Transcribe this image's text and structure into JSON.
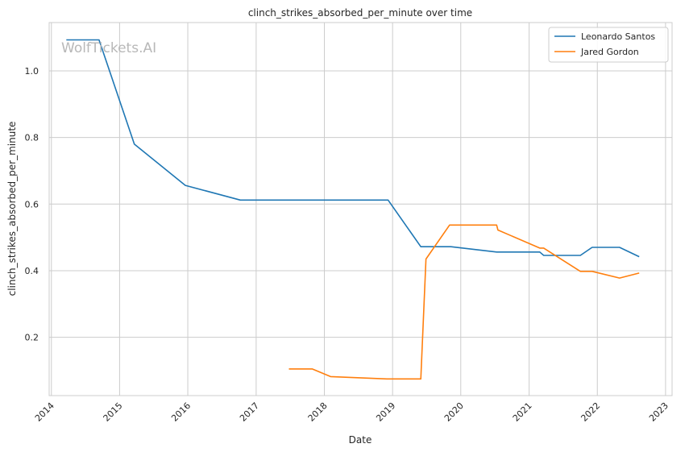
{
  "chart_data": {
    "type": "line",
    "title": "clinch_strikes_absorbed_per_minute over time",
    "xlabel": "Date",
    "ylabel": "clinch_strikes_absorbed_per_minute",
    "watermark": "WolfTickets.AI",
    "x_ticks": [
      "2014",
      "2015",
      "2016",
      "2017",
      "2018",
      "2019",
      "2020",
      "2021",
      "2022",
      "2023"
    ],
    "y_ticks": [
      "0.2",
      "0.4",
      "0.6",
      "0.8",
      "1.0"
    ],
    "xlim": [
      "2013-12-20",
      "2023-02-05"
    ],
    "ylim": [
      0.025,
      1.145
    ],
    "grid": true,
    "legend_position": "top-right",
    "series": [
      {
        "name": "Leonardo Santos",
        "color": "#1f77b4",
        "points": [
          [
            "2014-03-22",
            1.093
          ],
          [
            "2014-09-13",
            1.093
          ],
          [
            "2015-03-21",
            0.78
          ],
          [
            "2015-12-19",
            0.656
          ],
          [
            "2016-10-08",
            0.612
          ],
          [
            "2018-12-08",
            0.612
          ],
          [
            "2019-06-01",
            0.472
          ],
          [
            "2019-11-09",
            0.472
          ],
          [
            "2020-07-11",
            0.456
          ],
          [
            "2021-02-27",
            0.456
          ],
          [
            "2021-03-20",
            0.446
          ],
          [
            "2021-10-02",
            0.446
          ],
          [
            "2021-12-04",
            0.47
          ],
          [
            "2022-04-30",
            0.47
          ],
          [
            "2022-08-13",
            0.442
          ]
        ]
      },
      {
        "name": "Jared Gordon",
        "color": "#ff7f0e",
        "points": [
          [
            "2017-06-25",
            0.105
          ],
          [
            "2017-10-28",
            0.105
          ],
          [
            "2018-02-03",
            0.082
          ],
          [
            "2018-12-02",
            0.075
          ],
          [
            "2019-06-01",
            0.075
          ],
          [
            "2019-06-29",
            0.435
          ],
          [
            "2019-11-02",
            0.537
          ],
          [
            "2020-07-11",
            0.537
          ],
          [
            "2020-07-18",
            0.522
          ],
          [
            "2021-02-27",
            0.468
          ],
          [
            "2021-03-20",
            0.468
          ],
          [
            "2021-10-02",
            0.398
          ],
          [
            "2021-12-04",
            0.398
          ],
          [
            "2022-04-30",
            0.378
          ],
          [
            "2022-08-13",
            0.393
          ]
        ]
      }
    ]
  }
}
